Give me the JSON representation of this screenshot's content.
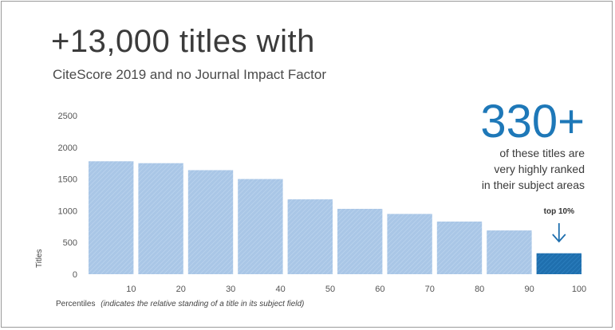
{
  "header": {
    "title": "+13,000 titles with",
    "subtitle": "CiteScore 2019 and no Journal Impact Factor"
  },
  "callout": {
    "number": "330+",
    "lines": [
      "of these titles are",
      "very highly ranked",
      "in their subject areas"
    ],
    "highlight_label": "top 10%"
  },
  "colors": {
    "bar": "#a9c6e6",
    "highlight_bar": "#1f6fae",
    "number": "#1e78b8"
  },
  "chart_data": {
    "type": "bar",
    "xlabel": "Percentiles",
    "xlabel_note": "(indicates the relative standing of a title in its subject field)",
    "ylabel": "Titles",
    "ylim": [
      0,
      2500
    ],
    "yticks": [
      0,
      500,
      1000,
      1500,
      2000,
      2500
    ],
    "xticks": [
      10,
      20,
      30,
      40,
      50,
      60,
      70,
      80,
      90,
      100
    ],
    "bins": [
      [
        0,
        10
      ],
      [
        10,
        20
      ],
      [
        20,
        30
      ],
      [
        30,
        40
      ],
      [
        40,
        50
      ],
      [
        50,
        60
      ],
      [
        60,
        70
      ],
      [
        70,
        80
      ],
      [
        80,
        90
      ],
      [
        90,
        100
      ]
    ],
    "values": [
      1780,
      1750,
      1640,
      1500,
      1180,
      1030,
      950,
      830,
      690,
      330
    ],
    "highlight_index": 9,
    "grid": false
  }
}
